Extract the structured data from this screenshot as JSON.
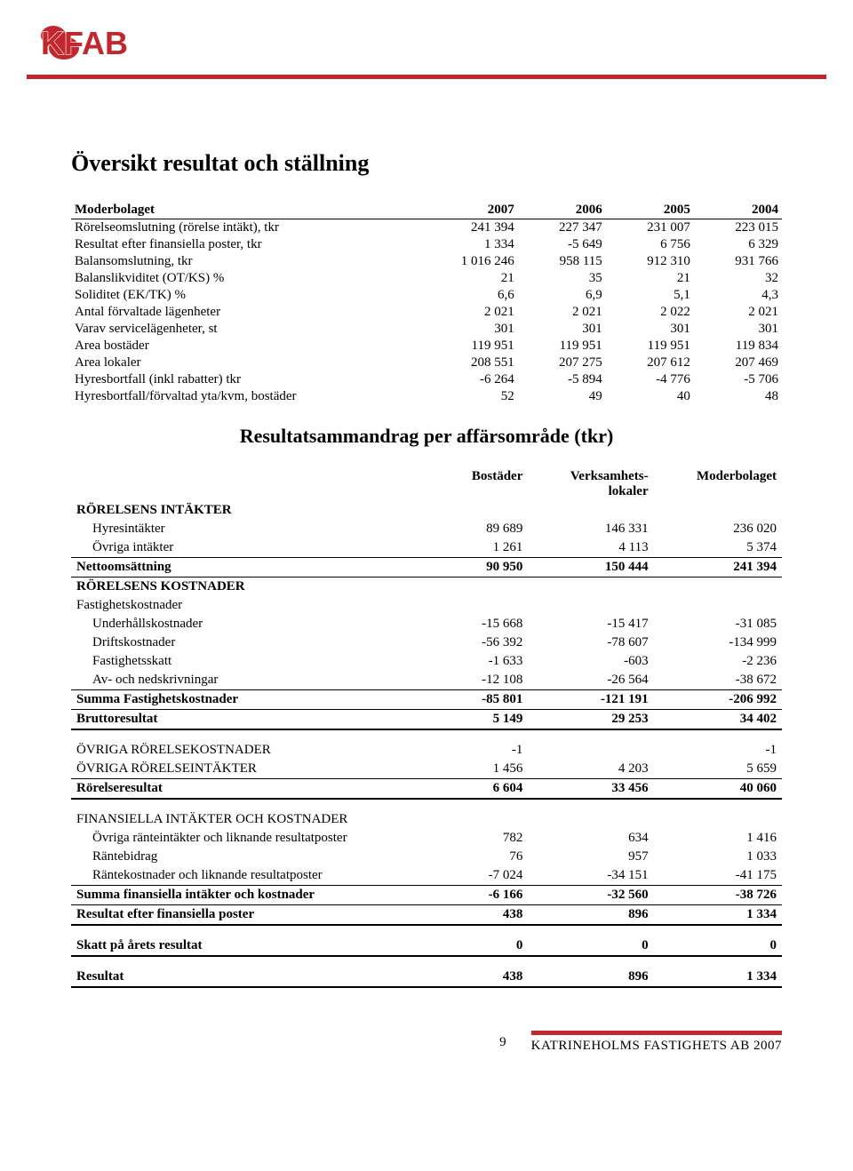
{
  "colors": {
    "accent": "#c1272d",
    "text": "#000000",
    "bg": "#ffffff"
  },
  "logo": {
    "text": "KFAB"
  },
  "title": "Översikt resultat och ställning",
  "table1": {
    "header_label": "Moderbolaget",
    "years": [
      "2007",
      "2006",
      "2005",
      "2004"
    ],
    "rows": [
      {
        "label": "Rörelseomslutning (rörelse intäkt), tkr",
        "v": [
          "241 394",
          "227 347",
          "231 007",
          "223 015"
        ]
      },
      {
        "label": "Resultat efter finansiella poster, tkr",
        "v": [
          "1 334",
          "-5 649",
          "6 756",
          "6 329"
        ]
      },
      {
        "label": "Balansomslutning, tkr",
        "v": [
          "1 016 246",
          "958 115",
          "912 310",
          "931 766"
        ]
      },
      {
        "label": "Balanslikviditet (OT/KS) %",
        "v": [
          "21",
          "35",
          "21",
          "32"
        ]
      },
      {
        "label": "Soliditet (EK/TK) %",
        "v": [
          "6,6",
          "6,9",
          "5,1",
          "4,3"
        ]
      },
      {
        "label": "Antal förvaltade lägenheter",
        "v": [
          "2 021",
          "2 021",
          "2 022",
          "2 021"
        ]
      },
      {
        "label": "Varav servicelägenheter, st",
        "v": [
          "301",
          "301",
          "301",
          "301"
        ]
      },
      {
        "label": "Area bostäder",
        "v": [
          "119 951",
          "119 951",
          "119 951",
          "119 834"
        ]
      },
      {
        "label": "Area lokaler",
        "v": [
          "208 551",
          "207 275",
          "207 612",
          "207 469"
        ]
      },
      {
        "label": "Hyresbortfall (inkl rabatter) tkr",
        "v": [
          "-6 264",
          "-5 894",
          "-4 776",
          "-5 706"
        ]
      },
      {
        "label": "Hyresbortfall/förvaltad yta/kvm, bostäder",
        "v": [
          "52",
          "49",
          "40",
          "48"
        ]
      }
    ]
  },
  "subtitle": "Resultatsammandrag per affärsområde (tkr)",
  "table2": {
    "col_headers": [
      "Bostäder",
      "Verksamhets-\nlokaler",
      "Moderbolaget"
    ],
    "rows": [
      {
        "label": "RÖRELSENS INTÄKTER",
        "bold": true,
        "v": [
          "",
          "",
          ""
        ]
      },
      {
        "label": "Hyresintäkter",
        "indent": 1,
        "v": [
          "89 689",
          "146 331",
          "236 020"
        ]
      },
      {
        "label": "Övriga intäkter",
        "indent": 1,
        "bb": true,
        "v": [
          "1 261",
          "4 113",
          "5 374"
        ]
      },
      {
        "label": "Nettoomsättning",
        "bold": true,
        "v": [
          "90 950",
          "150 444",
          "241 394"
        ],
        "bb": true
      },
      {
        "label": "RÖRELSENS KOSTNADER",
        "bold": true,
        "v": [
          "",
          "",
          ""
        ]
      },
      {
        "label": "Fastighetskostnader",
        "v": [
          "",
          "",
          ""
        ]
      },
      {
        "label": "Underhållskostnader",
        "indent": 1,
        "v": [
          "-15 668",
          "-15 417",
          "-31 085"
        ]
      },
      {
        "label": "Driftskostnader",
        "indent": 1,
        "v": [
          "-56 392",
          "-78 607",
          "-134 999"
        ]
      },
      {
        "label": "Fastighetsskatt",
        "indent": 1,
        "v": [
          "-1 633",
          "-603",
          "-2 236"
        ]
      },
      {
        "label": "Av- och nedskrivningar",
        "indent": 1,
        "bb": true,
        "v": [
          "-12 108",
          "-26 564",
          "-38 672"
        ]
      },
      {
        "label": "Summa Fastighetskostnader",
        "bold": true,
        "bb": true,
        "v": [
          "-85 801",
          "-121 191",
          "-206 992"
        ]
      },
      {
        "label": "Bruttoresultat",
        "bold": true,
        "bbthick": true,
        "v": [
          "5 149",
          "29 253",
          "34 402"
        ]
      },
      {
        "label": "ÖVRIGA RÖRELSEKOSTNADER",
        "v": [
          "-1",
          "",
          "-1"
        ]
      },
      {
        "label": "ÖVRIGA RÖRELSEINTÄKTER",
        "bb": true,
        "v": [
          "1 456",
          "4 203",
          "5 659"
        ]
      },
      {
        "label": "Rörelseresultat",
        "bold": true,
        "bbthick": true,
        "v": [
          "6 604",
          "33 456",
          "40 060"
        ]
      },
      {
        "label": "FINANSIELLA INTÄKTER OCH KOSTNADER",
        "v": [
          "",
          "",
          ""
        ]
      },
      {
        "label": "Övriga ränteintäkter och liknande resultatposter",
        "indent": 1,
        "v": [
          "782",
          "634",
          "1 416"
        ]
      },
      {
        "label": "Räntebidrag",
        "indent": 1,
        "v": [
          "76",
          "957",
          "1 033"
        ]
      },
      {
        "label": "Räntekostnader och liknande resultatposter",
        "indent": 1,
        "bb": true,
        "v": [
          "-7 024",
          "-34 151",
          "-41 175"
        ]
      },
      {
        "label": "Summa finansiella intäkter och kostnader",
        "bold": true,
        "bb": true,
        "v": [
          "-6 166",
          "-32 560",
          "-38 726"
        ]
      },
      {
        "label": "Resultat efter finansiella poster",
        "bold": true,
        "bbthick": true,
        "v": [
          "438",
          "896",
          "1 334"
        ]
      },
      {
        "label": "Skatt på årets resultat",
        "bold": true,
        "bbthick": true,
        "v": [
          "0",
          "0",
          "0"
        ]
      },
      {
        "label": "Resultat",
        "bold": true,
        "bbthick": true,
        "v": [
          "438",
          "896",
          "1 334"
        ]
      }
    ]
  },
  "footer": {
    "page": "9",
    "company": "KATRINEHOLMS FASTIGHETS AB 2007"
  }
}
